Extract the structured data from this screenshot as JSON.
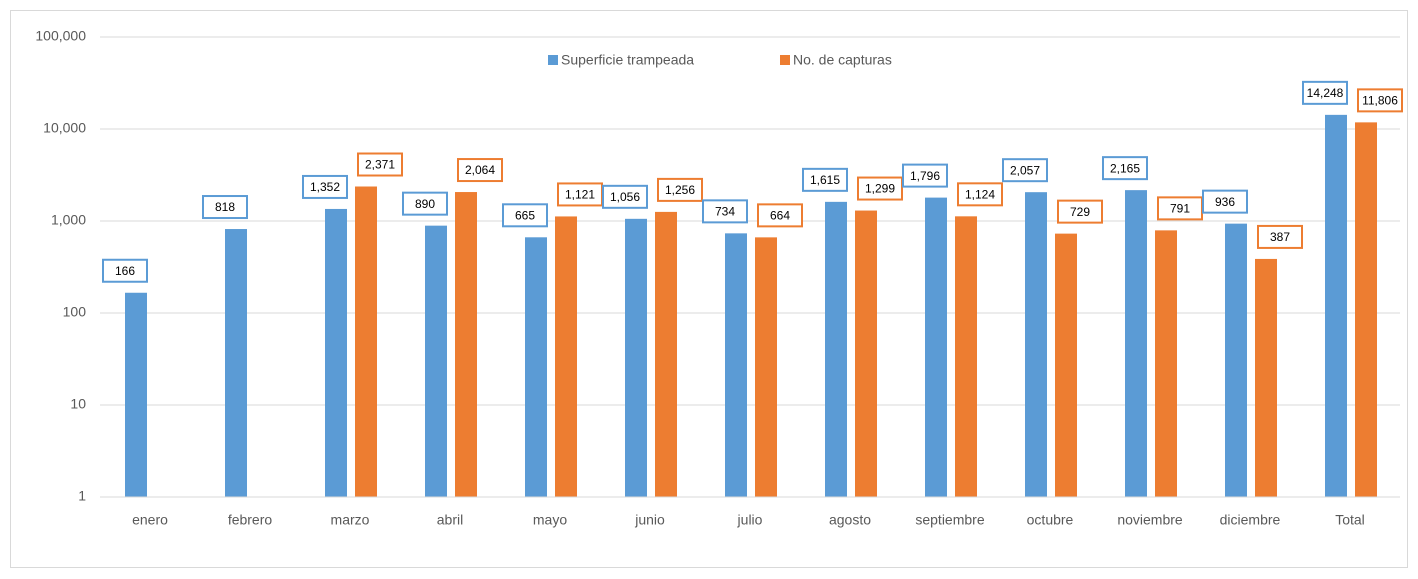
{
  "chart_data": {
    "type": "bar",
    "yscale": "log",
    "grid": true,
    "legend": "top",
    "categories": [
      "enero",
      "febrero",
      "marzo",
      "abril",
      "mayo",
      "junio",
      "julio",
      "agosto",
      "septiembre",
      "octubre",
      "noviembre",
      "diciembre",
      "Total"
    ],
    "series": [
      {
        "name": "Superficie trampeada",
        "color": "#5b9bd5",
        "values": [
          166,
          818,
          1352,
          890,
          665,
          1056,
          734,
          1615,
          1796,
          2057,
          2165,
          936,
          14248
        ],
        "value_labels": [
          "166",
          "818",
          "1,352",
          "890",
          "665",
          "1,056",
          "734",
          "1,615",
          "1,796",
          "2,057",
          "2,165",
          "936",
          "14,248"
        ]
      },
      {
        "name": "No. de capturas",
        "color": "#ed7d31",
        "values": [
          null,
          null,
          2371,
          2064,
          1121,
          1256,
          664,
          1299,
          1124,
          729,
          791,
          387,
          11806
        ],
        "value_labels": [
          null,
          null,
          "2,371",
          "2,064",
          "1,121",
          "1,256",
          "664",
          "1,299",
          "1,124",
          "729",
          "791",
          "387",
          "11,806"
        ]
      }
    ],
    "ylim": [
      1,
      100000
    ],
    "yticks": [
      1,
      10,
      100,
      {
        "value": 1000,
        "label": "1,000"
      },
      {
        "value": 10000,
        "label": "10,000"
      },
      {
        "value": 100000,
        "label": "100,000"
      }
    ]
  }
}
